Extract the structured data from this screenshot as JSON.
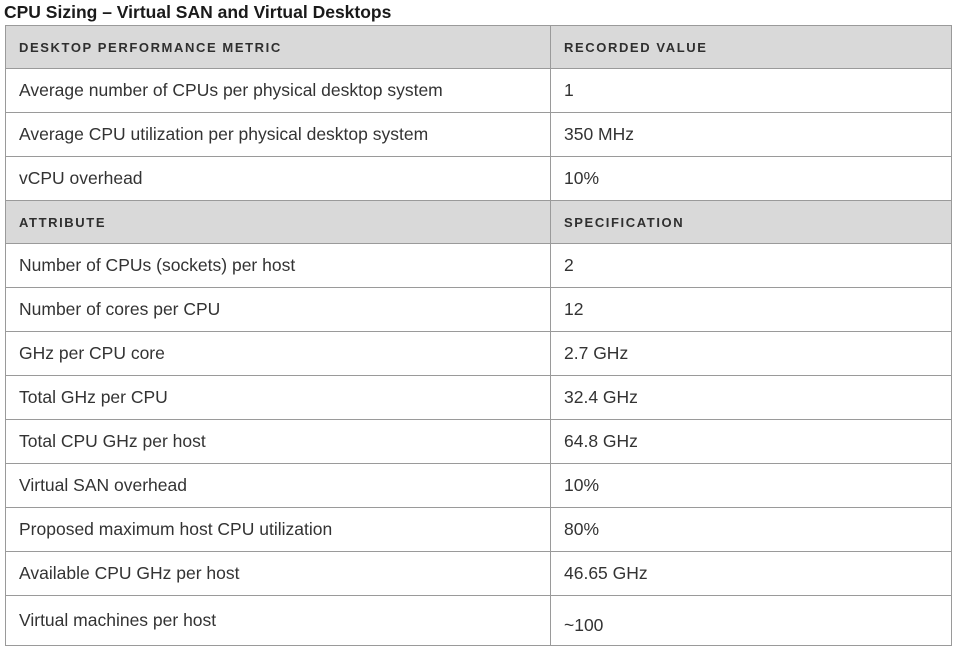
{
  "title": "CPU Sizing – Virtual SAN and Virtual Desktops",
  "section1": {
    "headers": [
      "DESKTOP PERFORMANCE METRIC",
      "RECORDED VALUE"
    ],
    "rows": [
      {
        "label": "Average number of CPUs per physical desktop system",
        "value": "1"
      },
      {
        "label": "Average CPU utilization per physical desktop system",
        "value": "350 MHz"
      },
      {
        "label": "vCPU overhead",
        "value": "10%"
      }
    ]
  },
  "section2": {
    "headers": [
      "ATTRIBUTE",
      "SPECIFICATION"
    ],
    "rows": [
      {
        "label": "Number of CPUs (sockets) per host",
        "value": "2"
      },
      {
        "label": "Number of cores per CPU",
        "value": "12"
      },
      {
        "label": "GHz per CPU core",
        "value": "2.7 GHz"
      },
      {
        "label": "Total GHz per CPU",
        "value": "32.4 GHz"
      },
      {
        "label": "Total CPU GHz per host",
        "value": "64.8 GHz"
      },
      {
        "label": "Virtual SAN overhead",
        "value": "10%"
      },
      {
        "label": "Proposed maximum host CPU utilization",
        "value": "80%"
      },
      {
        "label": "Available CPU GHz per host",
        "value": "46.65 GHz"
      },
      {
        "label": "Virtual machines per host",
        "value": "~100"
      }
    ]
  }
}
